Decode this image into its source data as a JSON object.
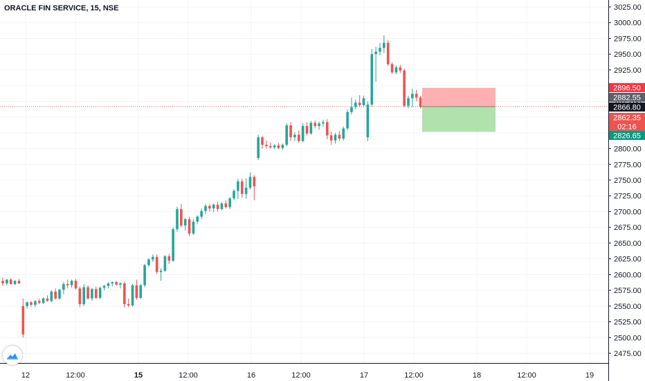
{
  "header": {
    "title": "ORACLE FIN SERVICE, 15, NSE"
  },
  "colors": {
    "up": "#26a69a",
    "down": "#ef5350",
    "grid": "#f0f3fa",
    "axis_text": "#131722",
    "price_line": "#ef5350",
    "stop_zone": "#ffa8a8",
    "target_zone": "#a8dea4",
    "logo": "#2196f3"
  },
  "icons": {
    "logo": "tradingview-cloud-icon"
  },
  "chart_data": {
    "type": "candlestick",
    "title": "ORACLE FIN SERVICE, 15, NSE",
    "ylim": [
      2465,
      3030
    ],
    "y_ticks": [
      "3025.00",
      "3000.00",
      "2975.00",
      "2950.00",
      "2925.00",
      "2900.00",
      "2875.00",
      "2850.00",
      "2825.00",
      "2800.00",
      "2775.00",
      "2750.00",
      "2725.00",
      "2700.00",
      "2675.00",
      "2650.00",
      "2625.00",
      "2600.00",
      "2575.00",
      "2550.00",
      "2525.00",
      "2500.00",
      "2475.00"
    ],
    "x_ticks": [
      "12",
      "12:00",
      "15",
      "12:00",
      "16",
      "12:00",
      "17",
      "12:00",
      "18",
      "12:00",
      "19"
    ],
    "bold_x_ticks": [
      "15"
    ],
    "candles": [
      {
        "o": 2590,
        "h": 2595,
        "l": 2582,
        "c": 2586
      },
      {
        "o": 2586,
        "h": 2593,
        "l": 2583,
        "c": 2592
      },
      {
        "o": 2592,
        "h": 2594,
        "l": 2584,
        "c": 2585
      },
      {
        "o": 2585,
        "h": 2591,
        "l": 2583,
        "c": 2590
      },
      {
        "o": 2590,
        "h": 2593,
        "l": 2585,
        "c": 2586
      },
      {
        "o": 2550,
        "h": 2562,
        "l": 2500,
        "c": 2505
      },
      {
        "o": 2550,
        "h": 2557,
        "l": 2546,
        "c": 2556
      },
      {
        "o": 2556,
        "h": 2558,
        "l": 2549,
        "c": 2552
      },
      {
        "o": 2552,
        "h": 2559,
        "l": 2548,
        "c": 2558
      },
      {
        "o": 2558,
        "h": 2562,
        "l": 2553,
        "c": 2555
      },
      {
        "o": 2555,
        "h": 2564,
        "l": 2553,
        "c": 2562
      },
      {
        "o": 2562,
        "h": 2567,
        "l": 2557,
        "c": 2558
      },
      {
        "o": 2558,
        "h": 2575,
        "l": 2556,
        "c": 2573
      },
      {
        "o": 2573,
        "h": 2578,
        "l": 2560,
        "c": 2562
      },
      {
        "o": 2562,
        "h": 2577,
        "l": 2560,
        "c": 2576
      },
      {
        "o": 2576,
        "h": 2588,
        "l": 2569,
        "c": 2585
      },
      {
        "o": 2585,
        "h": 2592,
        "l": 2578,
        "c": 2583
      },
      {
        "o": 2583,
        "h": 2592,
        "l": 2579,
        "c": 2590
      },
      {
        "o": 2590,
        "h": 2593,
        "l": 2576,
        "c": 2578
      },
      {
        "o": 2578,
        "h": 2581,
        "l": 2548,
        "c": 2553
      },
      {
        "o": 2553,
        "h": 2585,
        "l": 2550,
        "c": 2580
      },
      {
        "o": 2580,
        "h": 2583,
        "l": 2560,
        "c": 2562
      },
      {
        "o": 2562,
        "h": 2579,
        "l": 2558,
        "c": 2577
      },
      {
        "o": 2577,
        "h": 2581,
        "l": 2561,
        "c": 2563
      },
      {
        "o": 2563,
        "h": 2581,
        "l": 2561,
        "c": 2579
      },
      {
        "o": 2579,
        "h": 2584,
        "l": 2575,
        "c": 2582
      },
      {
        "o": 2582,
        "h": 2588,
        "l": 2578,
        "c": 2586
      },
      {
        "o": 2586,
        "h": 2589,
        "l": 2581,
        "c": 2588
      },
      {
        "o": 2588,
        "h": 2590,
        "l": 2582,
        "c": 2584
      },
      {
        "o": 2584,
        "h": 2588,
        "l": 2578,
        "c": 2586
      },
      {
        "o": 2586,
        "h": 2589,
        "l": 2548,
        "c": 2553
      },
      {
        "o": 2553,
        "h": 2562,
        "l": 2548,
        "c": 2551
      },
      {
        "o": 2551,
        "h": 2585,
        "l": 2549,
        "c": 2583
      },
      {
        "o": 2583,
        "h": 2592,
        "l": 2560,
        "c": 2563
      },
      {
        "o": 2563,
        "h": 2585,
        "l": 2561,
        "c": 2583
      },
      {
        "o": 2583,
        "h": 2617,
        "l": 2580,
        "c": 2615
      },
      {
        "o": 2615,
        "h": 2626,
        "l": 2612,
        "c": 2624
      },
      {
        "o": 2624,
        "h": 2632,
        "l": 2620,
        "c": 2628
      },
      {
        "o": 2628,
        "h": 2632,
        "l": 2601,
        "c": 2604
      },
      {
        "o": 2604,
        "h": 2610,
        "l": 2590,
        "c": 2606
      },
      {
        "o": 2606,
        "h": 2631,
        "l": 2604,
        "c": 2629
      },
      {
        "o": 2629,
        "h": 2633,
        "l": 2617,
        "c": 2622
      },
      {
        "o": 2622,
        "h": 2675,
        "l": 2620,
        "c": 2672
      },
      {
        "o": 2672,
        "h": 2708,
        "l": 2668,
        "c": 2704
      },
      {
        "o": 2704,
        "h": 2712,
        "l": 2675,
        "c": 2678
      },
      {
        "o": 2678,
        "h": 2690,
        "l": 2670,
        "c": 2688
      },
      {
        "o": 2688,
        "h": 2692,
        "l": 2661,
        "c": 2665
      },
      {
        "o": 2665,
        "h": 2688,
        "l": 2663,
        "c": 2684
      },
      {
        "o": 2684,
        "h": 2694,
        "l": 2680,
        "c": 2692
      },
      {
        "o": 2692,
        "h": 2705,
        "l": 2688,
        "c": 2701
      },
      {
        "o": 2701,
        "h": 2712,
        "l": 2696,
        "c": 2709
      },
      {
        "o": 2709,
        "h": 2712,
        "l": 2700,
        "c": 2705
      },
      {
        "o": 2705,
        "h": 2713,
        "l": 2699,
        "c": 2711
      },
      {
        "o": 2711,
        "h": 2716,
        "l": 2700,
        "c": 2704
      },
      {
        "o": 2704,
        "h": 2715,
        "l": 2702,
        "c": 2713
      },
      {
        "o": 2713,
        "h": 2718,
        "l": 2705,
        "c": 2707
      },
      {
        "o": 2707,
        "h": 2723,
        "l": 2704,
        "c": 2721
      },
      {
        "o": 2721,
        "h": 2736,
        "l": 2718,
        "c": 2733
      },
      {
        "o": 2733,
        "h": 2752,
        "l": 2720,
        "c": 2748
      },
      {
        "o": 2748,
        "h": 2752,
        "l": 2722,
        "c": 2728
      },
      {
        "o": 2728,
        "h": 2753,
        "l": 2720,
        "c": 2738
      },
      {
        "o": 2738,
        "h": 2762,
        "l": 2735,
        "c": 2755
      },
      {
        "o": 2755,
        "h": 2758,
        "l": 2718,
        "c": 2740
      },
      {
        "o": 2785,
        "h": 2822,
        "l": 2782,
        "c": 2818
      },
      {
        "o": 2818,
        "h": 2820,
        "l": 2800,
        "c": 2806
      },
      {
        "o": 2806,
        "h": 2813,
        "l": 2800,
        "c": 2804
      },
      {
        "o": 2804,
        "h": 2810,
        "l": 2800,
        "c": 2802
      },
      {
        "o": 2802,
        "h": 2807,
        "l": 2799,
        "c": 2805
      },
      {
        "o": 2805,
        "h": 2809,
        "l": 2799,
        "c": 2801
      },
      {
        "o": 2801,
        "h": 2808,
        "l": 2798,
        "c": 2806
      },
      {
        "o": 2806,
        "h": 2840,
        "l": 2804,
        "c": 2837
      },
      {
        "o": 2837,
        "h": 2842,
        "l": 2812,
        "c": 2818
      },
      {
        "o": 2818,
        "h": 2826,
        "l": 2812,
        "c": 2822
      },
      {
        "o": 2822,
        "h": 2829,
        "l": 2809,
        "c": 2812
      },
      {
        "o": 2812,
        "h": 2840,
        "l": 2810,
        "c": 2836
      },
      {
        "o": 2836,
        "h": 2842,
        "l": 2821,
        "c": 2824
      },
      {
        "o": 2824,
        "h": 2844,
        "l": 2822,
        "c": 2841
      },
      {
        "o": 2841,
        "h": 2845,
        "l": 2832,
        "c": 2836
      },
      {
        "o": 2836,
        "h": 2843,
        "l": 2830,
        "c": 2840
      },
      {
        "o": 2840,
        "h": 2846,
        "l": 2835,
        "c": 2842
      },
      {
        "o": 2842,
        "h": 2847,
        "l": 2815,
        "c": 2821
      },
      {
        "o": 2821,
        "h": 2827,
        "l": 2806,
        "c": 2813
      },
      {
        "o": 2813,
        "h": 2825,
        "l": 2808,
        "c": 2822
      },
      {
        "o": 2822,
        "h": 2828,
        "l": 2812,
        "c": 2816
      },
      {
        "o": 2816,
        "h": 2835,
        "l": 2813,
        "c": 2832
      },
      {
        "o": 2832,
        "h": 2862,
        "l": 2829,
        "c": 2858
      },
      {
        "o": 2858,
        "h": 2881,
        "l": 2854,
        "c": 2866
      },
      {
        "o": 2866,
        "h": 2878,
        "l": 2862,
        "c": 2873
      },
      {
        "o": 2873,
        "h": 2885,
        "l": 2866,
        "c": 2869
      },
      {
        "o": 2869,
        "h": 2884,
        "l": 2866,
        "c": 2880
      },
      {
        "o": 2818,
        "h": 2875,
        "l": 2812,
        "c": 2870
      },
      {
        "o": 2870,
        "h": 2958,
        "l": 2866,
        "c": 2950
      },
      {
        "o": 2950,
        "h": 2962,
        "l": 2906,
        "c": 2954
      },
      {
        "o": 2954,
        "h": 2968,
        "l": 2948,
        "c": 2960
      },
      {
        "o": 2960,
        "h": 2980,
        "l": 2952,
        "c": 2968
      },
      {
        "o": 2968,
        "h": 2972,
        "l": 2931,
        "c": 2934
      },
      {
        "o": 2934,
        "h": 2937,
        "l": 2919,
        "c": 2921
      },
      {
        "o": 2921,
        "h": 2932,
        "l": 2918,
        "c": 2929
      },
      {
        "o": 2929,
        "h": 2933,
        "l": 2920,
        "c": 2924
      },
      {
        "o": 2924,
        "h": 2927,
        "l": 2866,
        "c": 2868
      },
      {
        "o": 2868,
        "h": 2884,
        "l": 2864,
        "c": 2880
      },
      {
        "o": 2880,
        "h": 2895,
        "l": 2866,
        "c": 2887
      },
      {
        "o": 2887,
        "h": 2893,
        "l": 2875,
        "c": 2881
      },
      {
        "o": 2881,
        "h": 2884,
        "l": 2864,
        "c": 2866
      }
    ],
    "current_price": 2866.8,
    "price_labels": [
      {
        "text": "2896.50",
        "value": 2896.5,
        "color": "#f23645"
      },
      {
        "text": "2882.55",
        "value": 2882.55,
        "color": "#5d606b"
      },
      {
        "text": "2866.80",
        "value": 2866.8,
        "color": "#131722"
      },
      {
        "text": "2862.35",
        "value": 2862.35,
        "color": "#ef5350"
      },
      {
        "text": "02:16",
        "value": 2850.5,
        "color": "#ef5350"
      },
      {
        "text": "2826.65",
        "value": 2826.65,
        "color": "#089981"
      }
    ],
    "position": {
      "type": "long",
      "entry": 2866.8,
      "stop": 2896.5,
      "target": 2826.65
    }
  }
}
